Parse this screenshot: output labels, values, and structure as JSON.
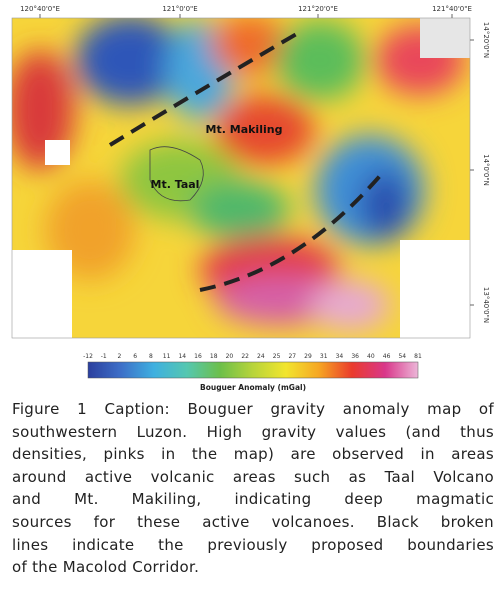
{
  "map": {
    "longitude_labels": [
      "120°40'0\"E",
      "121°0'0\"E",
      "121°20'0\"E",
      "121°40'0\"E"
    ],
    "latitude_labels": [
      "14°20'0\"N",
      "14°0'0\"N",
      "13°40'0\"N"
    ],
    "places": [
      "Mt. Makiling",
      "Mt. Taal"
    ]
  },
  "colorbar": {
    "ticks": [
      "-12",
      "-1",
      "2",
      "6",
      "8",
      "11",
      "14",
      "16",
      "18",
      "20",
      "22",
      "24",
      "25",
      "27",
      "29",
      "31",
      "34",
      "36",
      "40",
      "46",
      "54",
      "81"
    ],
    "label": "Bouguer Anomaly (mGal)"
  },
  "caption": {
    "lines": [
      "Figure 1 Caption: Bouguer gravity anomaly map of",
      "southwestern Luzon. High gravity values (and thus",
      "densities, pinks in the map) are observed in areas",
      "around active volcanic areas such as Taal Volcano",
      "and Mt. Makiling, indicating deep magmatic",
      "sources for these active volcanoes. Black broken",
      "lines indicate the previously proposed boundaries",
      "of the Macolod Corridor."
    ]
  }
}
